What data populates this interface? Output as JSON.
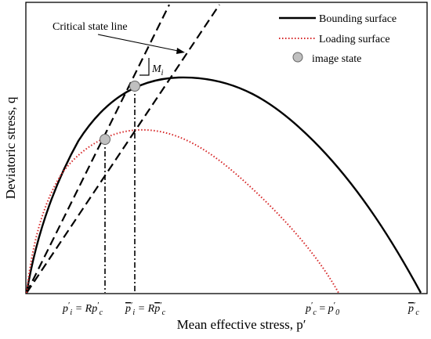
{
  "figure": {
    "xlabel": "Mean effective stress, p′",
    "ylabel": "Deviatoric stress, q",
    "annotation": "Critical state line",
    "slope_label": "M",
    "slope_subscript": "i",
    "legend": [
      {
        "label": "Bounding surface",
        "style": "solid",
        "color": "#000000",
        "marker": "line"
      },
      {
        "label": "Loading surface",
        "style": "dotted",
        "color": "#d62728",
        "marker": "line"
      },
      {
        "label": "image state",
        "style": "marker",
        "color": "#c0c0c0",
        "marker": "circle"
      }
    ],
    "x_tick_labels": [
      {
        "parts": [
          [
            "p",
            "i"
          ],
          [
            "′",
            "sup"
          ],
          [
            "i",
            "sub"
          ],
          [
            " = R",
            "i"
          ],
          [
            "p",
            "i"
          ],
          [
            "′",
            "sup"
          ],
          [
            "c",
            "sub"
          ]
        ],
        "text": "p′i = Rp′c"
      },
      {
        "parts": [
          [
            "p",
            "i-over"
          ],
          [
            "′",
            "sup"
          ],
          [
            "i",
            "sub"
          ],
          [
            " = R",
            "i"
          ],
          [
            "p",
            "i-over"
          ],
          [
            "′",
            "sup"
          ],
          [
            "c",
            "sub"
          ]
        ],
        "text": "p̅′i = Rp̅′c"
      },
      {
        "parts": [
          [
            "p",
            "i"
          ],
          [
            "′",
            "sup"
          ],
          [
            "c",
            "sub"
          ],
          [
            " = ",
            "n"
          ],
          [
            "p",
            "i"
          ],
          [
            "′",
            "sup"
          ],
          [
            "0",
            "sub"
          ]
        ],
        "text": "p′c = p′0"
      },
      {
        "parts": [
          [
            "p",
            "i-over"
          ],
          [
            "′",
            "sup"
          ],
          [
            "c",
            "sub"
          ]
        ],
        "text": "p̅′c"
      }
    ],
    "colors": {
      "bounding": "#000000",
      "loading": "#d62728",
      "marker_fill": "#c0c0c0",
      "guides": "#000000"
    }
  }
}
